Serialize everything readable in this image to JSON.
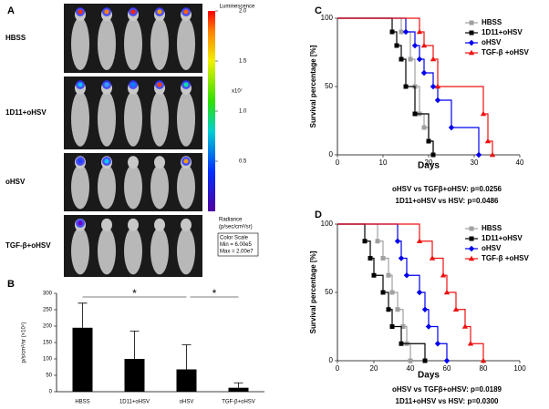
{
  "figure": {
    "panel_labels": [
      "A",
      "B",
      "C",
      "D"
    ],
    "rows": [
      "HBSS",
      "1D11+oHSV",
      "oHSV",
      "TGF-β+oHSV"
    ],
    "colorbar": {
      "title": "Luminescence",
      "lim": [
        0,
        2
      ],
      "ticks": [
        {
          "value": 0.5,
          "label": "0.5"
        },
        {
          "value": 1,
          "label": "1.0"
        },
        {
          "value": 1.5,
          "label": "1.5"
        },
        {
          "value": 2,
          "label": "2.0"
        }
      ],
      "exponent": "x10⁷",
      "unit_title": "Radiance",
      "unit": "(p/sec/cm²/sr)",
      "scale_box": [
        "Color Scale",
        "Min = 6.00e5",
        "Max = 2.00e7"
      ]
    }
  },
  "chart_data": [
    {
      "type": "bar",
      "ylabel": "p/s/cm²/sr (×10⁴)",
      "categories": [
        "HBSS",
        "1D11+oHSV",
        "oHSV",
        "TGF-β+oHSV"
      ],
      "values": [
        195,
        100,
        68,
        12
      ],
      "errors": [
        75,
        85,
        75,
        15
      ],
      "color": "#000000",
      "ylim": [
        0,
        300
      ],
      "yticks": [
        0,
        50,
        100,
        150,
        200,
        250,
        300
      ],
      "annotations": [
        "*",
        "*"
      ]
    },
    {
      "type": "step",
      "xlabel": "Days",
      "ylabel": "Survival percentage [%]",
      "xlim": [
        0,
        40
      ],
      "xticks": [
        0,
        10,
        20,
        30,
        40
      ],
      "ylim": [
        0,
        100
      ],
      "yticks": [
        0,
        50,
        100
      ],
      "series": [
        {
          "name": "HBSS",
          "color": "#a0a0a0",
          "marker": "square",
          "x": [
            0,
            14,
            16,
            17,
            18,
            19,
            20,
            21
          ],
          "values": [
            100,
            90,
            70,
            50,
            30,
            20,
            10,
            0
          ]
        },
        {
          "name": "1D11+oHSV",
          "color": "#000000",
          "marker": "square",
          "x": [
            0,
            12,
            13,
            14,
            15,
            17,
            20,
            21
          ],
          "values": [
            100,
            90,
            80,
            70,
            50,
            30,
            10,
            0
          ]
        },
        {
          "name": " oHSV",
          "color": "#0000ee",
          "marker": "diamond",
          "x": [
            0,
            15,
            17,
            18,
            19,
            21,
            22,
            25,
            31
          ],
          "values": [
            100,
            90,
            80,
            70,
            60,
            50,
            40,
            20,
            0
          ]
        },
        {
          "name": "TGF-β +oHSV",
          "color": "#ee1111",
          "marker": "triangle",
          "x": [
            0,
            18,
            19,
            21,
            22,
            32,
            33,
            34
          ],
          "values": [
            100,
            90,
            80,
            70,
            50,
            30,
            10,
            0
          ]
        }
      ],
      "annotations": [
        "oHSV vs TGFβ+oHSV: p=0.0256",
        "1D11+oHSV vs HSV: p=0.0486"
      ]
    },
    {
      "type": "step",
      "xlabel": "Days",
      "ylabel": "Survival percentage [%]",
      "xlim": [
        0,
        100
      ],
      "xticks": [
        0,
        20,
        40,
        60,
        80,
        100
      ],
      "ylim": [
        0,
        100
      ],
      "yticks": [
        0,
        50,
        100
      ],
      "series": [
        {
          "name": "HBSS",
          "color": "#a0a0a0",
          "marker": "square",
          "x": [
            0,
            22,
            25,
            28,
            30,
            33,
            36,
            38,
            40
          ],
          "values": [
            100,
            87.5,
            75,
            62.5,
            50,
            37.5,
            25,
            12.5,
            0
          ]
        },
        {
          "name": "1D11+oHSV",
          "color": "#000000",
          "marker": "square",
          "x": [
            0,
            15,
            18,
            20,
            25,
            28,
            30,
            35,
            48
          ],
          "values": [
            100,
            87.5,
            75,
            62.5,
            50,
            37.5,
            25,
            12.5,
            0
          ]
        },
        {
          "name": " oHSV",
          "color": "#0000ee",
          "marker": "diamond",
          "x": [
            0,
            33,
            35,
            38,
            45,
            48,
            50,
            55,
            60
          ],
          "values": [
            100,
            87.5,
            75,
            62.5,
            50,
            37.5,
            25,
            12.5,
            0
          ]
        },
        {
          "name": "TGF-β +oHSV",
          "color": "#ee1111",
          "marker": "triangle",
          "x": [
            0,
            45,
            52,
            58,
            60,
            65,
            70,
            73,
            80
          ],
          "values": [
            100,
            87.5,
            75,
            62.5,
            50,
            37.5,
            25,
            12.5,
            0
          ]
        }
      ],
      "annotations": [
        "oHSV vs TGFβ+oHSV: p=0.0189",
        "1D11+oHSV vs HSV: p=0.0300"
      ]
    }
  ]
}
